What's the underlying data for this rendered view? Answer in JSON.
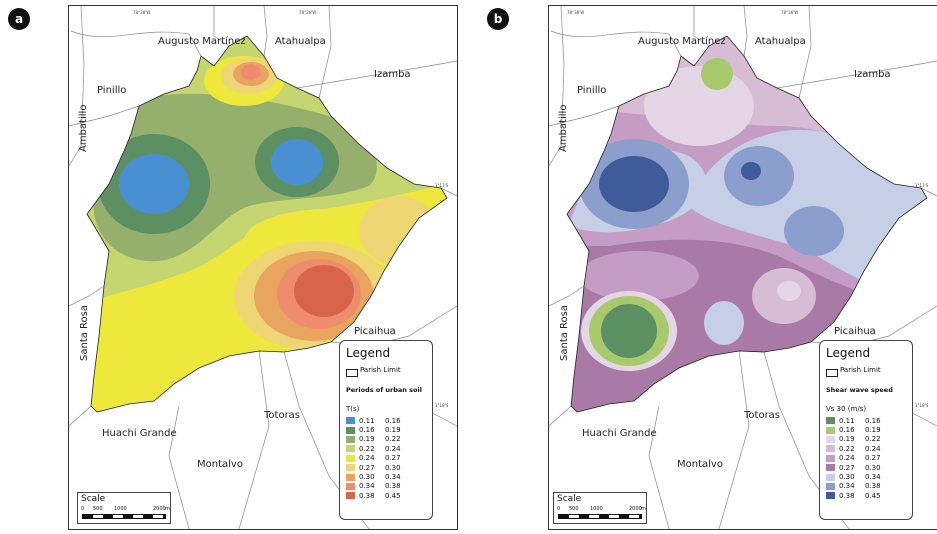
{
  "panels": [
    {
      "label": "a",
      "places": {
        "augusto_martinez": "Augusto Martínez",
        "atahualpa": "Atahualpa",
        "izamba": "Izamba",
        "pinillo": "Pinillo",
        "ambatillo": "Ambatillo",
        "santa_rosa": "Santa Rosa",
        "picaihua": "Picaihua",
        "huachi_grande": "Huachi Grande",
        "totoras": "Totoras",
        "montalvo": "Montalvo"
      },
      "coords": {
        "top1": "78°38'W",
        "top2": "78°36'W",
        "right1": "1°13'S",
        "right2": "1°18'S"
      },
      "legend": {
        "title": "Legend",
        "parish_limit": "Parish Limit",
        "subtitle": "Periods of urban soil",
        "units": "T(s)",
        "classes": [
          {
            "from": "0.11",
            "to": "0.16",
            "color": "#4a8fd1"
          },
          {
            "from": "0.16",
            "to": "0.19",
            "color": "#5c8f62"
          },
          {
            "from": "0.19",
            "to": "0.22",
            "color": "#94b06c"
          },
          {
            "from": "0.22",
            "to": "0.24",
            "color": "#c5d570"
          },
          {
            "from": "0.24",
            "to": "0.27",
            "color": "#eee83c"
          },
          {
            "from": "0.27",
            "to": "0.30",
            "color": "#efd675"
          },
          {
            "from": "0.30",
            "to": "0.34",
            "color": "#e9a45f"
          },
          {
            "from": "0.34",
            "to": "0.38",
            "color": "#ee8d6e"
          },
          {
            "from": "0.38",
            "to": "0.45",
            "color": "#d9644c"
          }
        ]
      },
      "scale": {
        "title": "Scale",
        "ticks": [
          "0",
          "500",
          "1000",
          "2000"
        ],
        "unit": "m"
      }
    },
    {
      "label": "b",
      "places": {
        "augusto_martinez": "Augusto Martínez",
        "atahualpa": "Atahualpa",
        "izamba": "Izamba",
        "pinillo": "Pinillo",
        "ambatillo": "Ambatillo",
        "santa_rosa": "Santa Rosa",
        "picaihua": "Picaihua",
        "huachi_grande": "Huachi Grande",
        "totoras": "Totoras",
        "montalvo": "Montalvo"
      },
      "coords": {
        "top1": "78°38'W",
        "top2": "78°36'W",
        "right1": "1°13'S",
        "right2": "1°18'S"
      },
      "legend": {
        "title": "Legend",
        "parish_limit": "Parish Limit",
        "subtitle": "Shear wave speed",
        "units": "Vs 30 (m/s)",
        "classes": [
          {
            "from": "0.11",
            "to": "0.16",
            "color": "#5c8f62"
          },
          {
            "from": "0.16",
            "to": "0.19",
            "color": "#a9c96d"
          },
          {
            "from": "0.19",
            "to": "0.22",
            "color": "#e4d6e4"
          },
          {
            "from": "0.22",
            "to": "0.24",
            "color": "#d7bcd6"
          },
          {
            "from": "0.24",
            "to": "0.27",
            "color": "#c59cc4"
          },
          {
            "from": "0.27",
            "to": "0.30",
            "color": "#a97aa6"
          },
          {
            "from": "0.30",
            "to": "0.34",
            "color": "#c6cfe6"
          },
          {
            "from": "0.34",
            "to": "0.38",
            "color": "#8c9fcc"
          },
          {
            "from": "0.38",
            "to": "0.45",
            "color": "#3f5b9a"
          }
        ]
      },
      "scale": {
        "title": "Scale",
        "ticks": [
          "0",
          "500",
          "1000",
          "2000"
        ],
        "unit": "m"
      }
    }
  ]
}
